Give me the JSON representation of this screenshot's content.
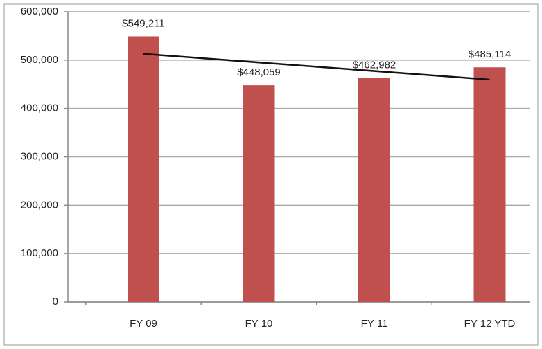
{
  "chart_data": {
    "type": "bar",
    "categories": [
      "FY 09",
      "FY 10",
      "FY 11",
      "FY 12 YTD"
    ],
    "values": [
      549211,
      448059,
      462982,
      485114
    ],
    "value_labels": [
      "$549,211",
      "$448,059",
      "$462,982",
      "$485,114"
    ],
    "color": "#c0504d",
    "ylim": [
      0,
      600000
    ],
    "yticks": [
      0,
      {
        "value": 100000,
        "label": "100,000"
      },
      {
        "value": 200000,
        "label": "200,000"
      },
      {
        "value": 300000,
        "label": "300,000"
      },
      {
        "value": 400000,
        "label": "400,000"
      },
      {
        "value": 500000,
        "label": "500,000"
      },
      {
        "value": 600000,
        "label": "600,000"
      }
    ],
    "grid": true,
    "trendline": {
      "type": "linear",
      "color": "#111111"
    }
  }
}
